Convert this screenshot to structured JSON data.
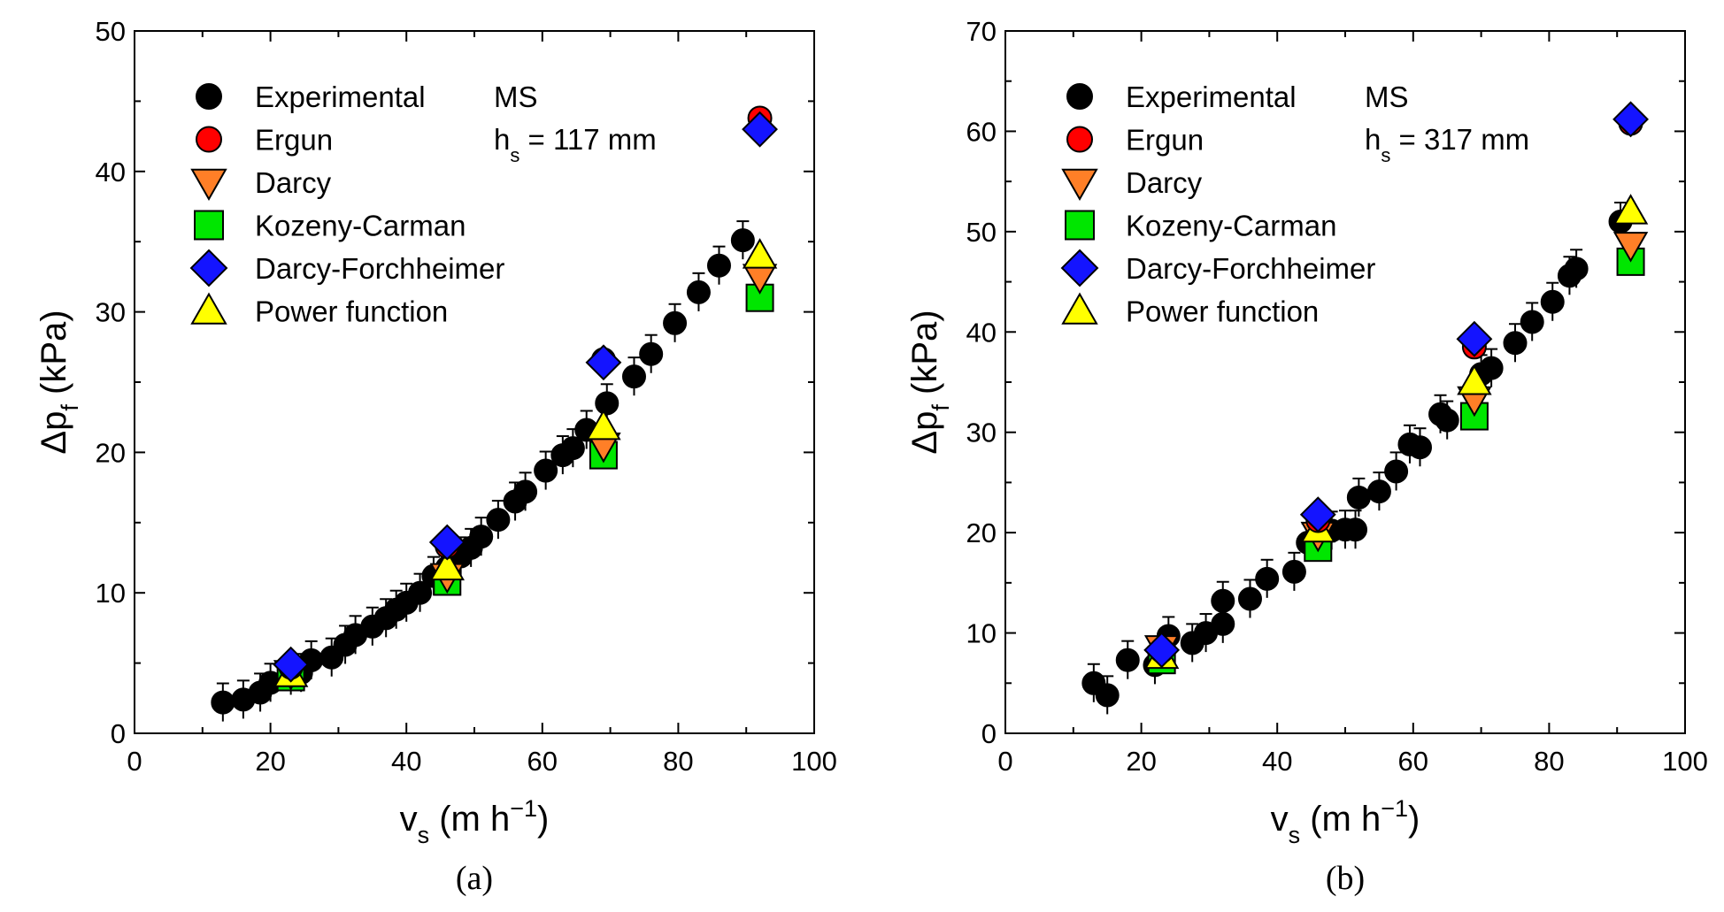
{
  "figure": {
    "panel_labels": [
      "(a)",
      "(b)"
    ]
  },
  "legend": {
    "experimental": "Experimental",
    "ergun": "Ergun",
    "darcy": "Darcy",
    "kozeny_carman": "Kozeny-Carman",
    "darcy_forchheimer": "Darcy-Forchheimer",
    "power_function": "Power function"
  },
  "colors": {
    "experimental": "#000000",
    "ergun": "#ff0000",
    "darcy": "#ff7f27",
    "kozeny_carman": "#00e600",
    "darcy_forchheimer": "#1414ff",
    "power_function": "#ffff00"
  },
  "chart_data": [
    {
      "type": "scatter",
      "panel": "(a)",
      "annotation": {
        "line1": "MS",
        "hs_prefix": "h",
        "hs_sub": "s",
        "hs_value": " = 117 mm"
      },
      "xlabel": {
        "main": "v",
        "sub": "s",
        "unit": " (m h",
        "sup": "−1",
        "close": ")"
      },
      "ylabel": {
        "main": "Δp",
        "sub": "f",
        "unit": " (kPa)"
      },
      "xlim": [
        0,
        100
      ],
      "ylim": [
        0,
        50
      ],
      "xticks": [
        0,
        20,
        40,
        60,
        80,
        100
      ],
      "yticks": [
        0,
        10,
        20,
        30,
        40,
        50
      ],
      "series": [
        {
          "key": "experimental",
          "name": "Experimental",
          "marker": "circle",
          "x": [
            13,
            16,
            18.5,
            20,
            23,
            24.5,
            26,
            29,
            31,
            32.5,
            35,
            37,
            38.5,
            40,
            42,
            44,
            46,
            48,
            49.5,
            51,
            53.5,
            56,
            57.5,
            60.5,
            63,
            64.5,
            66.5,
            69.5,
            73.5,
            76,
            79.5,
            83,
            86,
            89.5
          ],
          "y": [
            2.2,
            2.4,
            2.9,
            3.6,
            4.1,
            4.3,
            5.2,
            5.4,
            6.3,
            7.0,
            7.6,
            8.2,
            8.8,
            9.3,
            10.0,
            11.2,
            11.8,
            12.6,
            13.2,
            14.0,
            15.2,
            16.5,
            17.2,
            18.7,
            19.8,
            20.3,
            21.6,
            23.5,
            25.4,
            27.0,
            29.2,
            31.4,
            33.3,
            35.1
          ]
        },
        {
          "key": "ergun",
          "name": "Ergun",
          "marker": "circle",
          "x": [
            23,
            46,
            69,
            92
          ],
          "y": [
            4.7,
            13.3,
            26.6,
            43.8
          ]
        },
        {
          "key": "darcy",
          "name": "Darcy",
          "marker": "triangle-down",
          "x": [
            23,
            46,
            69,
            92
          ],
          "y": [
            4.3,
            11.2,
            20.5,
            32.5
          ]
        },
        {
          "key": "kozeny_carman",
          "name": "Kozeny-Carman",
          "marker": "square",
          "x": [
            23,
            46,
            69,
            92
          ],
          "y": [
            4.0,
            10.8,
            19.8,
            31.0
          ]
        },
        {
          "key": "darcy_forchheimer",
          "name": "Darcy-Forchheimer",
          "marker": "diamond",
          "x": [
            23,
            46,
            69,
            92
          ],
          "y": [
            4.9,
            13.6,
            26.4,
            43.0
          ]
        },
        {
          "key": "power_function",
          "name": "Power function",
          "marker": "triangle-up",
          "x": [
            23,
            46,
            69,
            92
          ],
          "y": [
            4.2,
            11.8,
            21.8,
            34.0
          ]
        }
      ]
    },
    {
      "type": "scatter",
      "panel": "(b)",
      "annotation": {
        "line1": "MS",
        "hs_prefix": "h",
        "hs_sub": "s",
        "hs_value": " = 317 mm"
      },
      "xlabel": {
        "main": "v",
        "sub": "s",
        "unit": " (m h",
        "sup": "−1",
        "close": ")"
      },
      "ylabel": {
        "main": "Δp",
        "sub": "f",
        "unit": " (kPa)"
      },
      "xlim": [
        0,
        100
      ],
      "ylim": [
        0,
        70
      ],
      "xticks": [
        0,
        20,
        40,
        60,
        80,
        100
      ],
      "yticks": [
        0,
        10,
        20,
        30,
        40,
        50,
        60,
        70
      ],
      "series": [
        {
          "key": "experimental",
          "name": "Experimental",
          "marker": "circle",
          "x": [
            13,
            15,
            18,
            22,
            24,
            27.5,
            29.5,
            32,
            32,
            36,
            38.5,
            42.5,
            44.5,
            48,
            50,
            51.5,
            52,
            55,
            57.5,
            59.5,
            61,
            64,
            65,
            70,
            71.5,
            75,
            77.5,
            80.5,
            83,
            84,
            90.5
          ],
          "y": [
            5.0,
            3.8,
            7.3,
            6.8,
            9.7,
            9.0,
            10.0,
            10.9,
            13.2,
            13.4,
            15.4,
            16.1,
            19.0,
            20.2,
            20.3,
            20.3,
            23.5,
            24.1,
            26.1,
            28.8,
            28.5,
            31.8,
            31.2,
            35.8,
            36.4,
            38.9,
            41.0,
            43.0,
            45.6,
            46.3,
            51.0
          ]
        },
        {
          "key": "ergun",
          "name": "Ergun",
          "marker": "circle",
          "x": [
            23,
            46,
            69,
            92
          ],
          "y": [
            8.2,
            21.2,
            38.5,
            60.8
          ]
        },
        {
          "key": "darcy",
          "name": "Darcy",
          "marker": "triangle-down",
          "x": [
            23,
            46,
            69,
            92
          ],
          "y": [
            8.5,
            19.8,
            33.3,
            48.7
          ]
        },
        {
          "key": "kozeny_carman",
          "name": "Kozeny-Carman",
          "marker": "square",
          "x": [
            23,
            46,
            69,
            92
          ],
          "y": [
            7.3,
            18.5,
            31.6,
            47.0
          ]
        },
        {
          "key": "darcy_forchheimer",
          "name": "Darcy-Forchheimer",
          "marker": "diamond",
          "x": [
            23,
            46,
            69,
            92
          ],
          "y": [
            8.3,
            21.8,
            39.3,
            61.2
          ]
        },
        {
          "key": "power_function",
          "name": "Power function",
          "marker": "triangle-up",
          "x": [
            23,
            46,
            69,
            92
          ],
          "y": [
            7.7,
            20.3,
            35.0,
            52.0
          ]
        }
      ]
    }
  ]
}
